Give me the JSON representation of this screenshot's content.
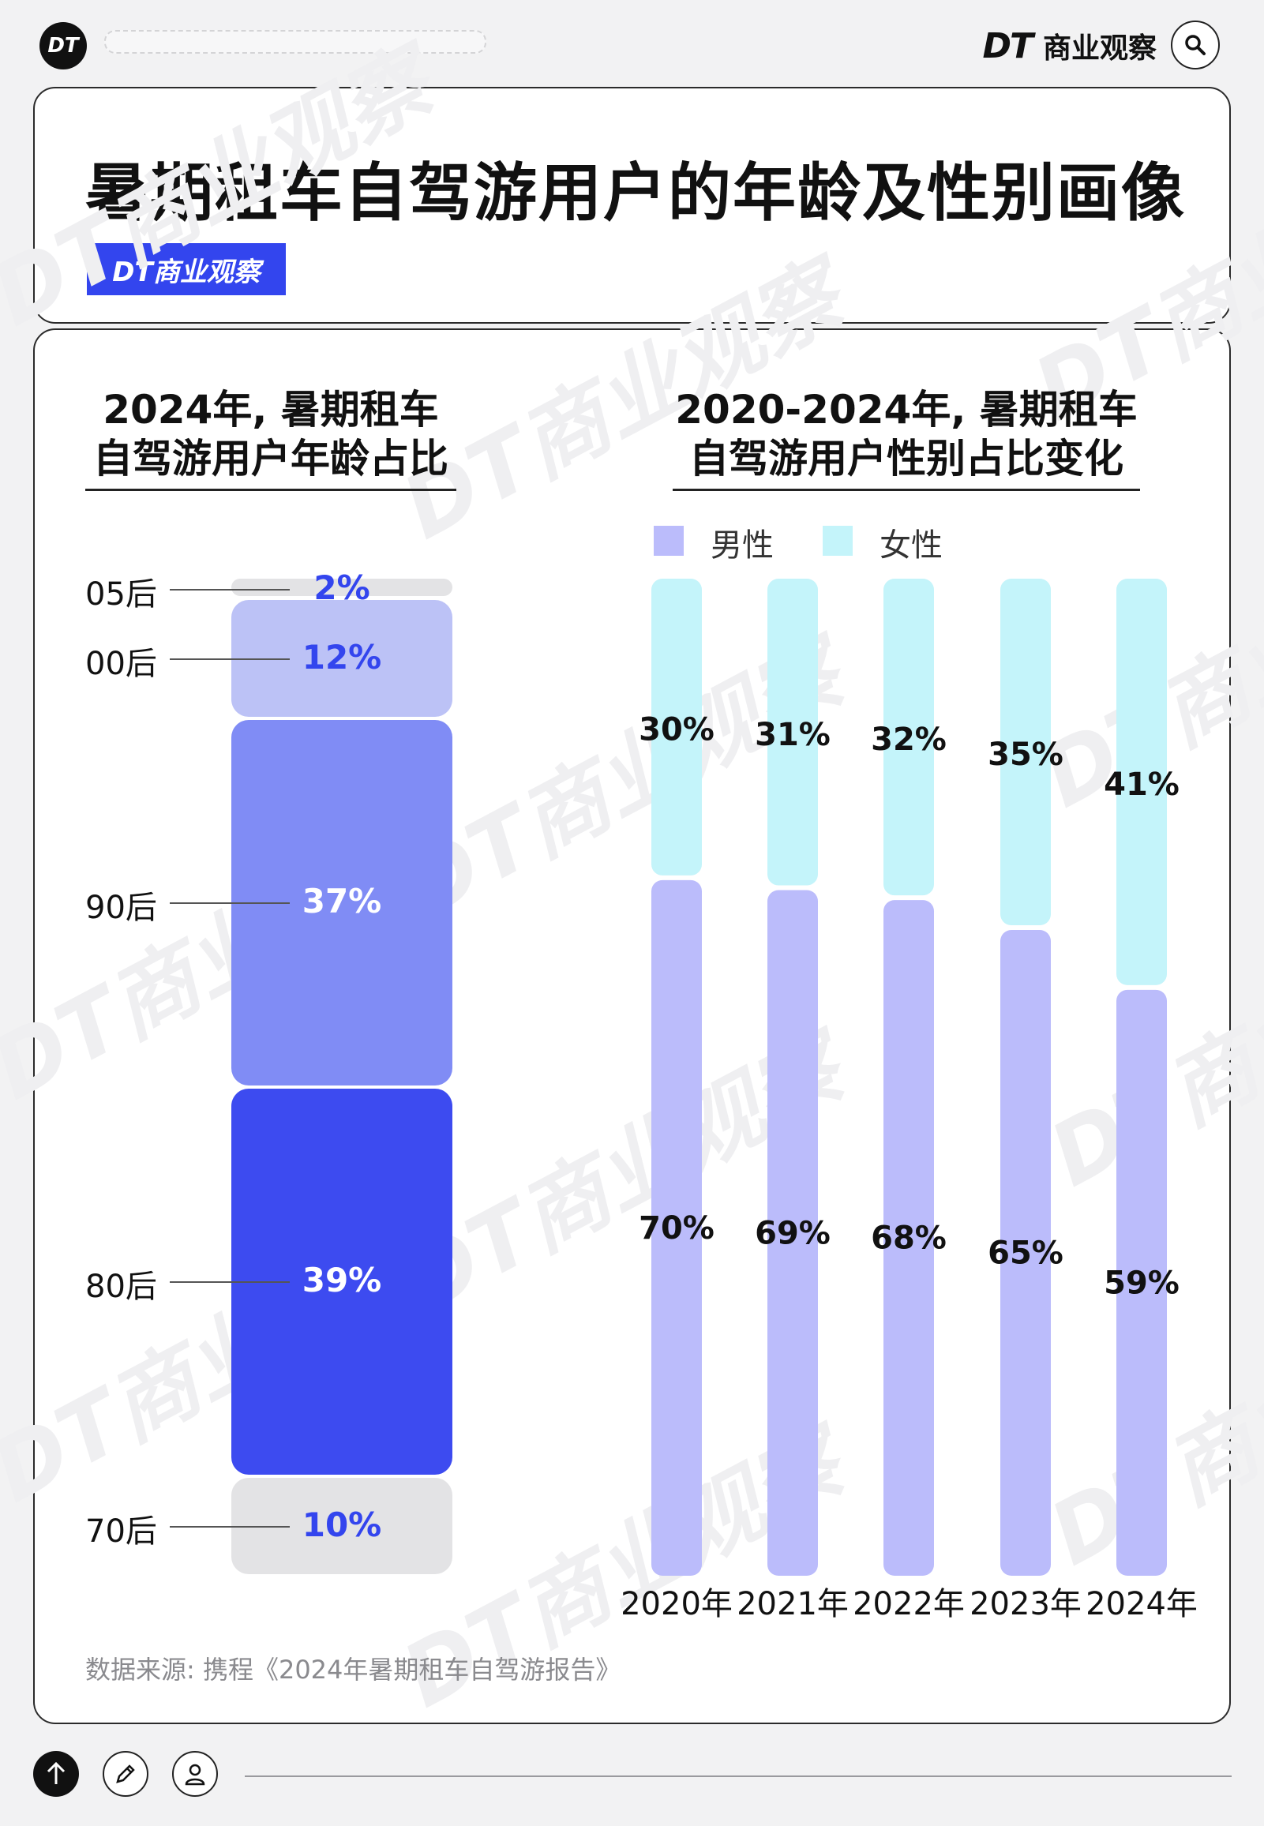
{
  "brand": {
    "logo_text": "DT",
    "name": "商业观察",
    "dt_mark": "DT"
  },
  "header": {
    "title": "暑期租车自驾游用户的年龄及性别画像",
    "badge": "DT商业观察"
  },
  "left_panel": {
    "title_line1": "2024年, 暑期租车",
    "title_line2": "自驾游用户年龄占比"
  },
  "right_panel": {
    "title_line1": "2020-2024年, 暑期租车",
    "title_line2": "自驾游用户性别占比变化"
  },
  "source": "数据来源: 携程《2024年暑期租车自驾游报告》",
  "watermark": "DT商业观察",
  "colors": {
    "male": "#bbbcfb",
    "female": "#c4f4fa",
    "age_05": "#e3e3e5",
    "age_00": "#bcc2f6",
    "age_90": "#808cf5",
    "age_80": "#3d4bf0",
    "age_70": "#e3e3e5",
    "accent": "#3345ee"
  },
  "chart_data": [
    {
      "type": "bar",
      "title": "2024年, 暑期租车自驾游用户年龄占比",
      "categories": [
        "05后",
        "00后",
        "90后",
        "80后",
        "70后"
      ],
      "values": [
        2,
        12,
        37,
        39,
        10
      ],
      "value_labels": [
        "2%",
        "12%",
        "37%",
        "39%",
        "10%"
      ]
    },
    {
      "type": "bar",
      "title": "2020-2024年, 暑期租车自驾游用户性别占比变化",
      "categories": [
        "2020年",
        "2021年",
        "2022年",
        "2023年",
        "2024年"
      ],
      "series": [
        {
          "name": "男性",
          "values": [
            70,
            69,
            68,
            65,
            59
          ],
          "labels": [
            "70%",
            "69%",
            "68%",
            "65%",
            "59%"
          ]
        },
        {
          "name": "女性",
          "values": [
            30,
            31,
            32,
            35,
            41
          ],
          "labels": [
            "30%",
            "31%",
            "32%",
            "35%",
            "41%"
          ]
        }
      ],
      "legend": "top-left"
    }
  ]
}
